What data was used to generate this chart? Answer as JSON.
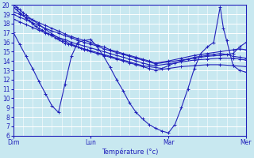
{
  "title": "",
  "xlabel": "Température (°c)",
  "ylabel": "",
  "xlim": [
    0,
    72
  ],
  "ylim": [
    6,
    20
  ],
  "yticks": [
    6,
    7,
    8,
    9,
    10,
    11,
    12,
    13,
    14,
    15,
    16,
    17,
    18,
    19,
    20
  ],
  "xtick_positions": [
    0,
    24,
    48,
    72
  ],
  "xtick_labels": [
    "Dim",
    "Lun",
    "Mar",
    "Mer"
  ],
  "bg_color": "#c8e8f0",
  "grid_color": "#ffffff",
  "line_color": "#2222bb",
  "series": [
    [
      0,
      19.8,
      1,
      19.5,
      2,
      19.2,
      3,
      18.9,
      4,
      18.6,
      5,
      18.3,
      6,
      18.0,
      7,
      17.7,
      8,
      17.5,
      9,
      17.3,
      10,
      17.1,
      11,
      16.9,
      12,
      16.7,
      13,
      16.5,
      14,
      16.3,
      15,
      16.1,
      16,
      15.9,
      17,
      15.8,
      18,
      15.7,
      19,
      15.6,
      20,
      15.5,
      21,
      15.4,
      22,
      15.3,
      23,
      15.2,
      24,
      15.1,
      26,
      14.9,
      28,
      14.7,
      30,
      14.5,
      32,
      14.3,
      34,
      14.1,
      36,
      13.9,
      38,
      13.7,
      40,
      13.5,
      42,
      13.4,
      44,
      13.3,
      46,
      13.2,
      48,
      13.5,
      50,
      13.8,
      52,
      14.0,
      54,
      14.2,
      56,
      14.4,
      58,
      14.5,
      60,
      14.6,
      62,
      14.7,
      64,
      14.8,
      66,
      14.7,
      68,
      14.5,
      70,
      14.4,
      72,
      14.3
    ],
    [
      0,
      19.3,
      2,
      19.0,
      4,
      18.7,
      6,
      18.4,
      8,
      18.1,
      10,
      17.8,
      12,
      17.5,
      14,
      17.2,
      16,
      16.9,
      18,
      16.6,
      20,
      16.4,
      22,
      16.2,
      24,
      16.0,
      26,
      15.7,
      28,
      15.5,
      30,
      15.2,
      32,
      15.0,
      34,
      14.8,
      36,
      14.6,
      38,
      14.4,
      40,
      14.2,
      42,
      14.0,
      44,
      13.8,
      48,
      14.0,
      52,
      14.3,
      56,
      14.6,
      60,
      14.8,
      64,
      15.0,
      68,
      15.2,
      70,
      15.3,
      72,
      15.2
    ],
    [
      0,
      19.0,
      2,
      18.7,
      4,
      18.4,
      6,
      18.1,
      8,
      17.8,
      10,
      17.5,
      12,
      17.2,
      14,
      17.0,
      16,
      16.7,
      18,
      16.5,
      20,
      16.2,
      22,
      16.0,
      24,
      15.8,
      26,
      15.6,
      28,
      15.3,
      30,
      15.1,
      32,
      14.9,
      34,
      14.7,
      36,
      14.5,
      38,
      14.3,
      40,
      14.1,
      42,
      13.9,
      44,
      13.7,
      48,
      13.9,
      52,
      14.1,
      56,
      14.3,
      60,
      14.5,
      64,
      14.6,
      68,
      14.8,
      70,
      15.5,
      72,
      16.0
    ],
    [
      0,
      18.5,
      2,
      18.2,
      4,
      17.9,
      6,
      17.6,
      8,
      17.3,
      10,
      17.0,
      12,
      16.8,
      14,
      16.5,
      16,
      16.3,
      18,
      16.0,
      20,
      15.8,
      22,
      15.6,
      24,
      15.4,
      26,
      15.2,
      28,
      15.0,
      30,
      14.8,
      32,
      14.6,
      34,
      14.4,
      36,
      14.2,
      38,
      14.0,
      40,
      13.8,
      42,
      13.6,
      44,
      13.5,
      48,
      13.7,
      52,
      13.9,
      56,
      14.1,
      60,
      14.2,
      64,
      14.3,
      68,
      14.3,
      70,
      14.2,
      72,
      14.1
    ],
    [
      0,
      17.1,
      2,
      15.8,
      4,
      14.5,
      6,
      13.2,
      8,
      11.8,
      10,
      10.5,
      12,
      9.2,
      14,
      8.5,
      16,
      11.5,
      18,
      14.5,
      20,
      16.0,
      22,
      16.2,
      24,
      16.3,
      26,
      15.5,
      28,
      14.5,
      30,
      13.3,
      32,
      12.0,
      34,
      10.8,
      36,
      9.5,
      38,
      8.5,
      40,
      7.8,
      42,
      7.2,
      44,
      6.8,
      46,
      6.5,
      48,
      6.3,
      50,
      7.2,
      52,
      9.0,
      54,
      11.0,
      56,
      13.2,
      58,
      14.8,
      60,
      15.5,
      62,
      16.0,
      64,
      19.8,
      65,
      17.5,
      66,
      16.2,
      68,
      13.5,
      70,
      13.0,
      72,
      12.8
    ],
    [
      0,
      20.0,
      1,
      19.8,
      2,
      19.5,
      3,
      19.2,
      4,
      18.9,
      6,
      18.4,
      8,
      17.9,
      10,
      17.4,
      12,
      16.9,
      14,
      16.5,
      16,
      16.1,
      18,
      15.8,
      20,
      15.5,
      22,
      15.2,
      24,
      15.0,
      26,
      14.8,
      28,
      14.6,
      30,
      14.4,
      32,
      14.2,
      34,
      14.0,
      36,
      13.8,
      38,
      13.6,
      40,
      13.4,
      42,
      13.2,
      44,
      13.0,
      48,
      13.2,
      52,
      13.4,
      56,
      13.5,
      60,
      13.6,
      64,
      13.6,
      68,
      13.5,
      72,
      13.4
    ]
  ]
}
